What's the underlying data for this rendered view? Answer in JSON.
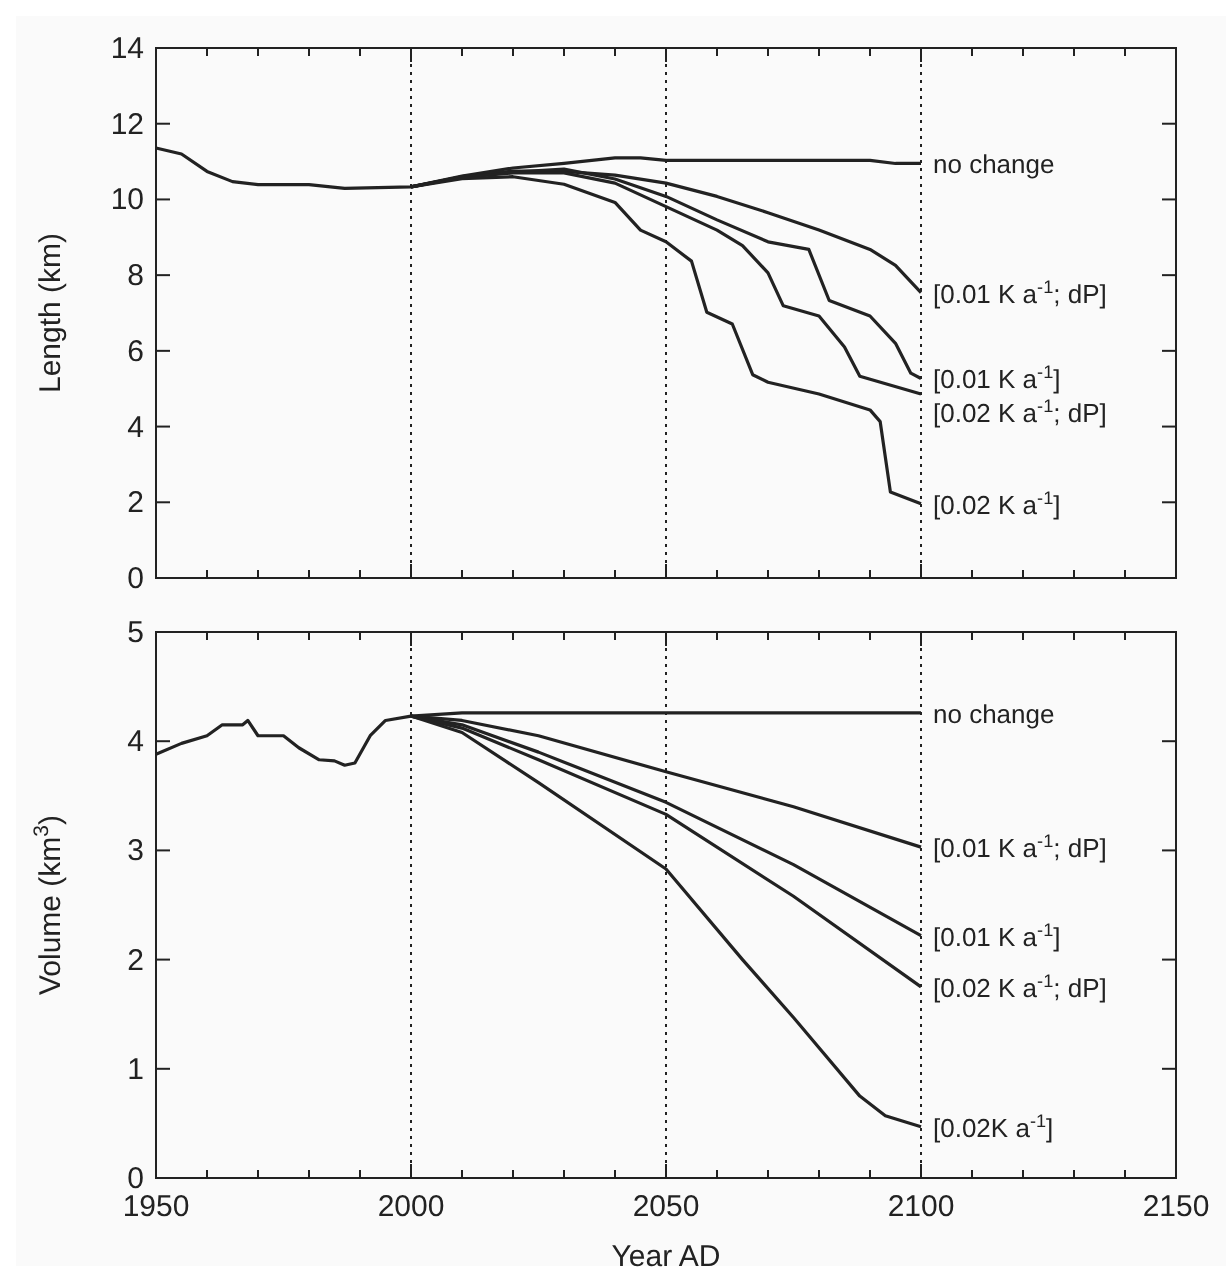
{
  "chart_data": [
    {
      "type": "line",
      "legend": "right",
      "ylabel": "Length (km)",
      "xlim": [
        1950,
        2150
      ],
      "ylim": [
        0,
        14
      ],
      "tick_labels": "y",
      "xticks": [
        1950,
        {
          "value": 1960,
          "label": null
        },
        {
          "value": 1970,
          "label": null
        },
        {
          "value": 1980,
          "label": null
        },
        {
          "value": 1990,
          "label": null
        },
        2000,
        {
          "value": 2010,
          "label": null
        },
        {
          "value": 2020,
          "label": null
        },
        {
          "value": 2030,
          "label": null
        },
        {
          "value": 2040,
          "label": null
        },
        2050,
        {
          "value": 2060,
          "label": null
        },
        {
          "value": 2070,
          "label": null
        },
        {
          "value": 2080,
          "label": null
        },
        {
          "value": 2090,
          "label": null
        },
        2100,
        {
          "value": 2110,
          "label": null
        },
        {
          "value": 2120,
          "label": null
        },
        {
          "value": 2130,
          "label": null
        },
        {
          "value": 2140,
          "label": null
        },
        2150
      ],
      "yticks": [
        0,
        2,
        4,
        6,
        8,
        10,
        12,
        14
      ],
      "ref_lines": [
        {
          "axis": "x",
          "value": 2000,
          "line_style": "dotted"
        },
        {
          "axis": "x",
          "value": 2050,
          "line_style": "dotted"
        },
        {
          "axis": "x",
          "value": 2100,
          "line_style": "dotted"
        }
      ],
      "series": [
        {
          "name": "no change",
          "color": "#222222",
          "x": [
            1950,
            1955,
            1960,
            1965,
            1970,
            1980,
            1987,
            2000,
            2010,
            2020,
            2030,
            2040,
            2045,
            2050,
            2080,
            2090,
            2095,
            2100
          ],
          "values": [
            11.36,
            11.2,
            10.74,
            10.47,
            10.39,
            10.39,
            10.29,
            10.33,
            10.62,
            10.83,
            10.95,
            11.1,
            11.1,
            11.03,
            11.03,
            11.03,
            10.95,
            10.95
          ]
        },
        {
          "name": "[0.01 K a$^{-1}$; dP]",
          "color": "#222222",
          "x": [
            2000,
            2010,
            2020,
            2030,
            2040,
            2050,
            2060,
            2070,
            2080,
            2090,
            2095,
            2100
          ],
          "values": [
            10.33,
            10.6,
            10.75,
            10.74,
            10.64,
            10.43,
            10.08,
            9.65,
            9.19,
            8.68,
            8.26,
            7.54
          ]
        },
        {
          "name": "[0.01 K a$^{-1}$]",
          "color": "#222222",
          "x": [
            2000,
            2010,
            2020,
            2030,
            2040,
            2050,
            2060,
            2070,
            2078,
            2082,
            2090,
            2095,
            2098,
            2100
          ],
          "values": [
            10.33,
            10.6,
            10.72,
            10.8,
            10.54,
            10.08,
            9.46,
            8.88,
            8.68,
            7.33,
            6.92,
            6.2,
            5.41,
            5.27
          ]
        },
        {
          "name": "[0.02 K a$^{-1}$; dP]",
          "color": "#222222",
          "x": [
            2000,
            2010,
            2020,
            2030,
            2040,
            2050,
            2060,
            2065,
            2070,
            2073,
            2080,
            2085,
            2088,
            2100
          ],
          "values": [
            10.33,
            10.58,
            10.7,
            10.7,
            10.43,
            9.81,
            9.19,
            8.78,
            8.06,
            7.19,
            6.92,
            6.1,
            5.33,
            4.86
          ]
        },
        {
          "name": "[0.02 K a$^{-1}$]",
          "color": "#222222",
          "x": [
            2000,
            2010,
            2020,
            2030,
            2040,
            2045,
            2050,
            2055,
            2058,
            2063,
            2067,
            2070,
            2080,
            2090,
            2092,
            2094,
            2100
          ],
          "values": [
            10.33,
            10.55,
            10.6,
            10.4,
            9.92,
            9.19,
            8.88,
            8.37,
            7.02,
            6.71,
            5.37,
            5.17,
            4.86,
            4.44,
            4.13,
            2.27,
            1.96
          ]
        }
      ]
    },
    {
      "type": "line",
      "legend": "right",
      "ylabel": "Volume (km$^{3}$)",
      "xlabel": "Year AD",
      "xlim": [
        1950,
        2150
      ],
      "ylim": [
        0,
        5
      ],
      "xticks": [
        1950,
        {
          "value": 1960,
          "label": null
        },
        {
          "value": 1970,
          "label": null
        },
        {
          "value": 1980,
          "label": null
        },
        {
          "value": 1990,
          "label": null
        },
        2000,
        {
          "value": 2010,
          "label": null
        },
        {
          "value": 2020,
          "label": null
        },
        {
          "value": 2030,
          "label": null
        },
        {
          "value": 2040,
          "label": null
        },
        2050,
        {
          "value": 2060,
          "label": null
        },
        {
          "value": 2070,
          "label": null
        },
        {
          "value": 2080,
          "label": null
        },
        {
          "value": 2090,
          "label": null
        },
        2100,
        {
          "value": 2110,
          "label": null
        },
        {
          "value": 2120,
          "label": null
        },
        {
          "value": 2130,
          "label": null
        },
        {
          "value": 2140,
          "label": null
        },
        2150
      ],
      "yticks": [
        0,
        1,
        2,
        3,
        4,
        5
      ],
      "ref_lines": [
        {
          "axis": "x",
          "value": 2000,
          "line_style": "dotted"
        },
        {
          "axis": "x",
          "value": 2050,
          "line_style": "dotted"
        },
        {
          "axis": "x",
          "value": 2100,
          "line_style": "dotted"
        }
      ],
      "series": [
        {
          "name": "no change",
          "color": "#222222",
          "x": [
            1950,
            1955,
            1960,
            1963,
            1967,
            1968,
            1970,
            1975,
            1978,
            1982,
            1985,
            1987,
            1989,
            1992,
            1995,
            2000,
            2010,
            2050,
            2100
          ],
          "values": [
            3.88,
            3.98,
            4.05,
            4.15,
            4.15,
            4.19,
            4.05,
            4.05,
            3.94,
            3.83,
            3.82,
            3.78,
            3.8,
            4.05,
            4.19,
            4.23,
            4.26,
            4.26,
            4.26
          ]
        },
        {
          "name": "[0.01 K a$^{-1}$; dP]",
          "color": "#222222",
          "x": [
            2000,
            2010,
            2025,
            2050,
            2075,
            2100
          ],
          "values": [
            4.23,
            4.19,
            4.05,
            3.72,
            3.4,
            3.03
          ]
        },
        {
          "name": "[0.01 K a$^{-1}$]",
          "color": "#222222",
          "x": [
            2000,
            2010,
            2025,
            2050,
            2075,
            2100
          ],
          "values": [
            4.23,
            4.15,
            3.9,
            3.44,
            2.87,
            2.22
          ]
        },
        {
          "name": "[0.02 K a$^{-1}$; dP]",
          "color": "#222222",
          "x": [
            2000,
            2010,
            2025,
            2050,
            2075,
            2100
          ],
          "values": [
            4.23,
            4.12,
            3.83,
            3.33,
            2.58,
            1.75
          ]
        },
        {
          "name": "[0.02K a$^{-1}$]",
          "color": "#222222",
          "x": [
            2000,
            2010,
            2025,
            2050,
            2065,
            2075,
            2088,
            2093,
            2100
          ],
          "values": [
            4.23,
            4.08,
            3.62,
            2.83,
            2.0,
            1.47,
            0.75,
            0.57,
            0.47
          ]
        }
      ]
    }
  ]
}
